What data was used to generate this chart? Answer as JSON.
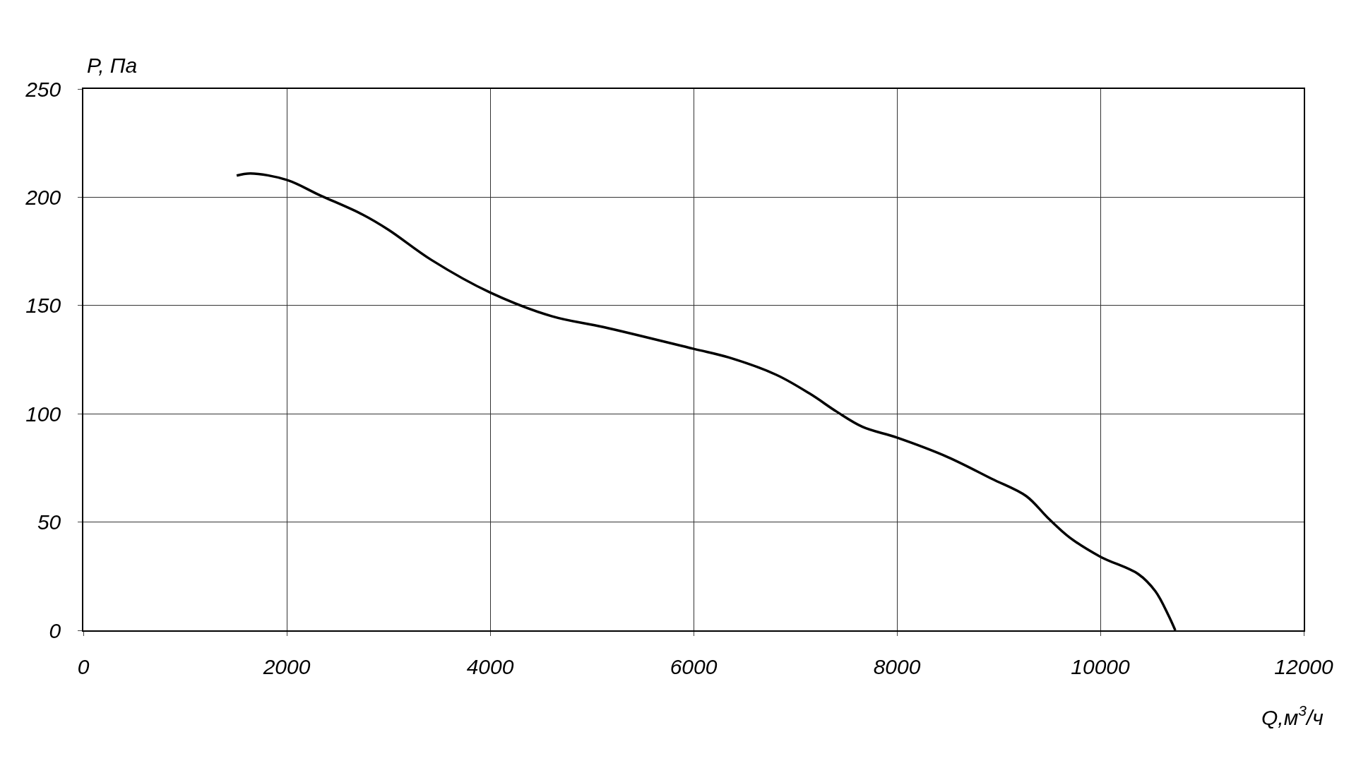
{
  "chart_data": {
    "type": "line",
    "xlabel": "Q,м$^{3}$/ч",
    "ylabel": "P, Па",
    "x": [
      1508,
      1644,
      2000,
      2322,
      2746,
      3000,
      3424,
      4000,
      4610,
      5119,
      6000,
      6347,
      6814,
      7153,
      7407,
      7661,
      8000,
      8500,
      8932,
      9271,
      9483,
      9695,
      10000,
      10373,
      10542,
      10669,
      10737
    ],
    "series": [
      {
        "color": "#000000",
        "values": [
          210,
          211,
          208,
          201,
          192,
          185,
          171,
          156,
          145,
          140,
          130,
          126,
          118,
          109,
          101,
          94,
          89,
          80,
          70,
          62,
          52,
          43,
          34,
          26,
          18,
          7,
          0
        ]
      }
    ],
    "xlim": [
      0,
      12000
    ],
    "xticks": [
      0,
      2000,
      4000,
      6000,
      8000,
      10000,
      12000
    ],
    "ylim": [
      0,
      250
    ],
    "yticks": [
      0,
      50,
      100,
      150,
      200,
      250
    ],
    "grid": true,
    "marker": "none",
    "line_style": "solid"
  }
}
